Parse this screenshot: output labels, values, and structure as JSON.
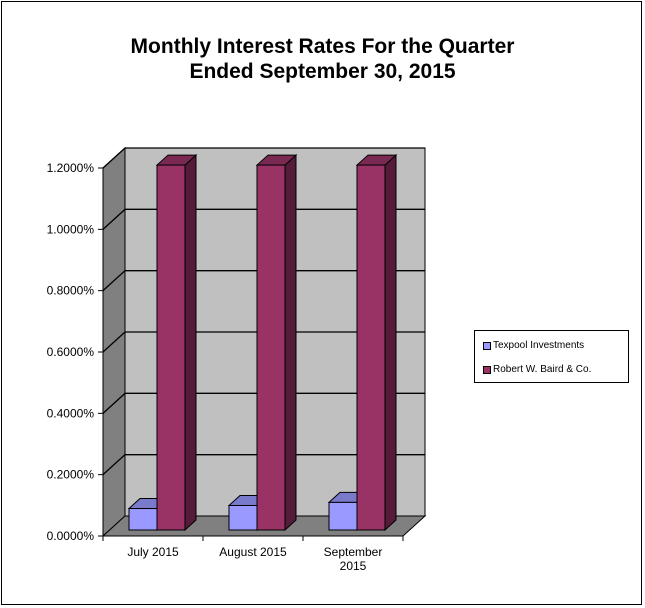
{
  "chart_data": {
    "type": "bar",
    "title_line1": "Monthly Interest Rates For the Quarter",
    "title_line2": "Ended September 30, 2015",
    "categories": [
      "July 2015",
      "August 2015",
      "September 2015"
    ],
    "category_lines": [
      [
        "July 2015"
      ],
      [
        "August 2015"
      ],
      [
        "September",
        "2015"
      ]
    ],
    "series": [
      {
        "name": "Texpool Investments",
        "values": [
          0.0007,
          0.0008,
          0.0009
        ],
        "color": "#9999ff"
      },
      {
        "name": "Robert W. Baird & Co.",
        "values": [
          0.0119,
          0.0119,
          0.0119
        ],
        "color": "#993366"
      }
    ],
    "yticks": [
      "0.0000%",
      "0.2000%",
      "0.4000%",
      "0.6000%",
      "0.8000%",
      "1.0000%",
      "1.2000%"
    ],
    "ylim": [
      0,
      0.012
    ],
    "grid": true,
    "legend_position": "right",
    "three_d": true
  }
}
